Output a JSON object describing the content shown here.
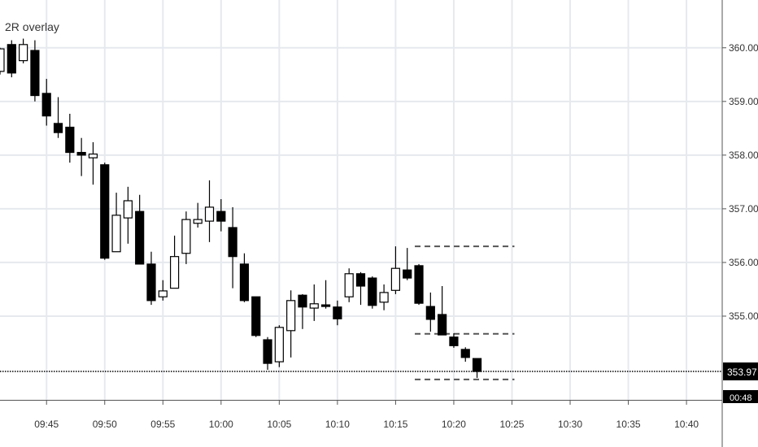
{
  "chart_data": {
    "type": "candlestick",
    "title": "2R overlay",
    "x": [
      "09:41",
      "09:42",
      "09:43",
      "09:44",
      "09:45",
      "09:46",
      "09:47",
      "09:48",
      "09:49",
      "09:50",
      "09:51",
      "09:52",
      "09:53",
      "09:54",
      "09:55",
      "09:56",
      "09:57",
      "09:58",
      "09:59",
      "10:00",
      "10:01",
      "10:02",
      "10:03",
      "10:04",
      "10:05",
      "10:06",
      "10:07",
      "10:08",
      "10:09",
      "10:10",
      "10:11",
      "10:12",
      "10:13",
      "10:14",
      "10:15",
      "10:16",
      "10:17",
      "10:18",
      "10:19",
      "10:20",
      "10:21",
      "10:22"
    ],
    "open": [
      359.56,
      360.06,
      359.76,
      359.95,
      359.15,
      358.59,
      358.52,
      358.05,
      357.95,
      357.82,
      356.2,
      356.83,
      356.95,
      355.97,
      355.36,
      355.52,
      356.17,
      356.73,
      356.77,
      356.95,
      356.65,
      355.97,
      355.36,
      354.56,
      354.15,
      354.73,
      355.39,
      355.15,
      355.21,
      355.17,
      355.36,
      355.79,
      355.71,
      355.26,
      355.48,
      355.86,
      355.94,
      355.18,
      355.03,
      354.61,
      354.38,
      354.21
    ],
    "high": [
      360.0,
      360.14,
      360.17,
      360.14,
      359.42,
      359.08,
      358.77,
      358.32,
      358.24,
      357.86,
      357.3,
      357.41,
      357.26,
      356.2,
      355.67,
      356.5,
      356.95,
      357.11,
      357.53,
      357.18,
      357.03,
      356.17,
      355.36,
      354.61,
      354.83,
      355.48,
      355.41,
      355.59,
      355.67,
      355.29,
      355.89,
      355.82,
      355.74,
      355.59,
      356.3,
      356.27,
      355.97,
      355.44,
      355.56,
      354.68,
      354.42,
      354.21
    ],
    "low": [
      359.5,
      359.45,
      359.71,
      359.0,
      358.55,
      358.32,
      357.86,
      357.61,
      357.45,
      356.05,
      356.2,
      356.35,
      355.97,
      355.21,
      355.29,
      355.52,
      355.97,
      356.65,
      356.38,
      356.58,
      355.52,
      355.26,
      354.61,
      354.0,
      354.05,
      354.23,
      354.76,
      354.91,
      355.14,
      354.83,
      355.26,
      355.21,
      355.14,
      355.11,
      355.41,
      355.67,
      355.21,
      354.71,
      354.65,
      354.41,
      354.15,
      353.85
    ],
    "close": [
      359.98,
      359.53,
      360.06,
      359.11,
      358.73,
      358.42,
      358.05,
      358.0,
      358.02,
      356.08,
      356.88,
      357.15,
      355.97,
      355.29,
      355.47,
      356.11,
      356.8,
      356.8,
      357.03,
      356.77,
      356.11,
      355.29,
      354.64,
      354.12,
      354.79,
      355.29,
      355.17,
      355.23,
      355.18,
      354.95,
      355.79,
      355.56,
      355.2,
      355.44,
      355.89,
      355.71,
      355.24,
      354.94,
      354.65,
      354.45,
      354.23,
      353.97
    ],
    "up_color": "#ffffff",
    "down_color": "#000000",
    "xlim": [
      "09:41",
      "10:43"
    ],
    "xticks": [
      "09:45",
      "09:50",
      "09:55",
      "10:00",
      "10:05",
      "10:10",
      "10:15",
      "10:20",
      "10:25",
      "10:30",
      "10:35",
      "10:40"
    ],
    "ylim": [
      353.44,
      360.89
    ],
    "yticks": [
      {
        "value": 355,
        "label": "355.00"
      },
      {
        "value": 356,
        "label": "356.00"
      },
      {
        "value": 357,
        "label": "357.00"
      },
      {
        "value": 358,
        "label": "358.00"
      },
      {
        "value": 359,
        "label": "359.00"
      },
      {
        "value": 360,
        "label": "360.00"
      }
    ],
    "grid": true,
    "last_price": 353.97,
    "countdown": "00:48",
    "overlay_lines": {
      "start": "10:17",
      "end": "10:25",
      "values": [
        356.3,
        354.67,
        353.82
      ]
    }
  }
}
